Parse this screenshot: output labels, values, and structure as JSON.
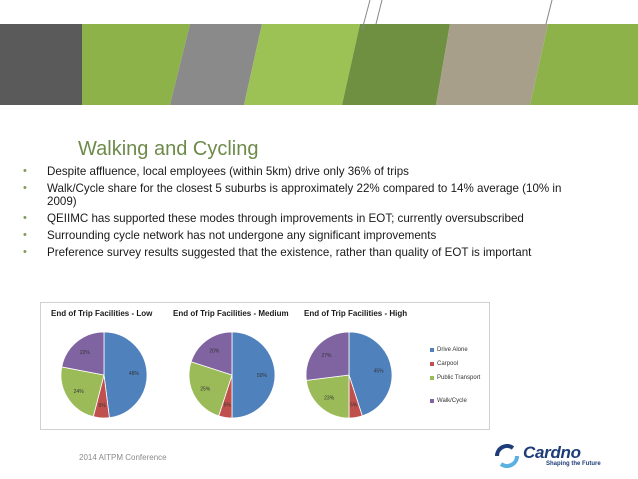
{
  "slide": {
    "title": "Walking and Cycling",
    "bullets": [
      "Despite affluence, local employees (within 5km) drive only 36% of trips",
      "Walk/Cycle share for the closest 5 suburbs is approximately 22% compared to 14% average (10% in 2009)",
      "QEIIMC has supported these modes through improvements in EOT; currently oversubscribed",
      "Surrounding cycle network has not undergone any significant improvements",
      "Preference survey results suggested that the existence, rather than quality of EOT is important"
    ],
    "footer": "2014 AITPM Conference",
    "logo": {
      "name": "Cardno",
      "tagline": "Shaping the Future"
    }
  },
  "colors": {
    "drive_alone": "#4f81bd",
    "carpool": "#c0504d",
    "public_transport": "#9bbb59",
    "walk_cycle": "#8064a2",
    "banner_dark": "#5a5a5a",
    "banner_green": "#8db24a",
    "banner_olive": "#6e9040",
    "banner_gray": "#8a8a8a",
    "banner_tan": "#a89f8a",
    "title_green": "#6e8a4a"
  },
  "chart_data": [
    {
      "type": "pie",
      "title": "End of Trip Facilities - Low",
      "series": [
        {
          "name": "Drive Alone",
          "value": 48,
          "label": "48%"
        },
        {
          "name": "Carpool",
          "value": 6,
          "label": "6%"
        },
        {
          "name": "Public Transport",
          "value": 24,
          "label": "24%"
        },
        {
          "name": "Walk/Cycle",
          "value": 22,
          "label": "22%"
        }
      ]
    },
    {
      "type": "pie",
      "title": "End of Trip Facilities - Medium",
      "series": [
        {
          "name": "Drive Alone",
          "value": 50,
          "label": "50%"
        },
        {
          "name": "Carpool",
          "value": 5,
          "label": "5%"
        },
        {
          "name": "Public Transport",
          "value": 25,
          "label": "25%"
        },
        {
          "name": "Walk/Cycle",
          "value": 20,
          "label": "20%"
        }
      ]
    },
    {
      "type": "pie",
      "title": "End of Trip Facilities - High",
      "series": [
        {
          "name": "Drive Alone",
          "value": 45,
          "label": "45%"
        },
        {
          "name": "Carpool",
          "value": 5,
          "label": "5%"
        },
        {
          "name": "Public Transport",
          "value": 23,
          "label": "23%"
        },
        {
          "name": "Walk/Cycle",
          "value": 27,
          "label": "27%"
        }
      ]
    }
  ],
  "legend": [
    "Drive Alone",
    "Carpool",
    "Public Transport",
    "Walk/Cycle"
  ]
}
